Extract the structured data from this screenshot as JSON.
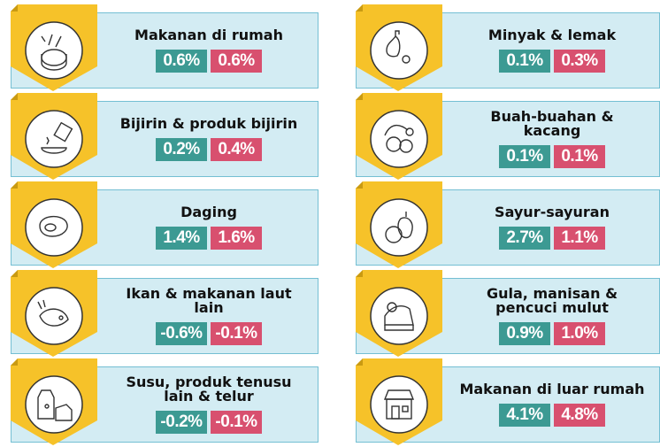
{
  "items": [
    {
      "title": "Makanan di rumah",
      "values": [
        "0.6%",
        "0.6%"
      ]
    },
    {
      "title": "Minyak & lemak",
      "values": [
        "0.1%",
        "0.3%"
      ]
    },
    {
      "title": "Bijirin & produk bijirin",
      "values": [
        "0.2%",
        "0.4%"
      ]
    },
    {
      "title": "Buah-buahan & kacang",
      "values": [
        "0.1%",
        "0.1%"
      ]
    },
    {
      "title": "Daging",
      "values": [
        "1.4%",
        "1.6%"
      ]
    },
    {
      "title": "Sayur-sayuran",
      "values": [
        "2.7%",
        "1.1%"
      ]
    },
    {
      "title": "Ikan & makanan laut lain",
      "values": [
        "-0.6%",
        "-0.1%"
      ]
    },
    {
      "title": "Gula, manisan & pencuci mulut",
      "values": [
        "0.9%",
        "1.0%"
      ]
    },
    {
      "title": "Susu, produk tenusu lain & telur",
      "values": [
        "-0.2%",
        "-0.1%"
      ]
    },
    {
      "title": "Makanan di luar rumah",
      "values": [
        "4.1%",
        "4.8%"
      ]
    }
  ]
}
